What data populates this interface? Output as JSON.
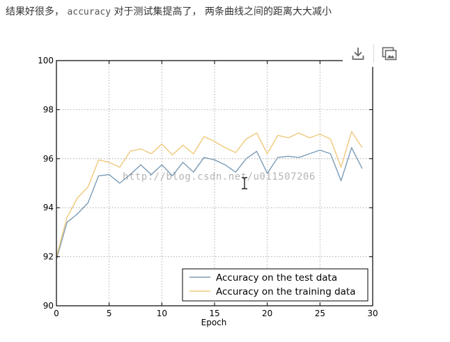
{
  "caption": {
    "prefix": "结果好很多，",
    "code": "accuracy",
    "suffix": "对于测试集提高了， 两条曲线之间的距离大大减小"
  },
  "toolbar": {
    "download_icon": "download-icon",
    "gallery_icon": "image-gallery-icon",
    "icon_color": "#666666"
  },
  "watermark": "http://blog.csdn.net/u011507206",
  "chart_data": {
    "type": "line",
    "title": "",
    "xlabel": "Epoch",
    "ylabel": "",
    "xlim": [
      0,
      30
    ],
    "ylim": [
      90,
      100
    ],
    "xticks": [
      0,
      5,
      10,
      15,
      20,
      25,
      30
    ],
    "yticks": [
      90,
      92,
      94,
      96,
      98,
      100
    ],
    "grid": true,
    "legend_position": "lower-right",
    "x": [
      0,
      1,
      2,
      3,
      4,
      5,
      6,
      7,
      8,
      9,
      10,
      11,
      12,
      13,
      14,
      15,
      16,
      17,
      18,
      19,
      20,
      21,
      22,
      23,
      24,
      25,
      26,
      27,
      28,
      29
    ],
    "series": [
      {
        "name": "Accuracy on the test data",
        "color": "#7a9bb6",
        "values": [
          91.9,
          93.4,
          93.75,
          94.2,
          95.3,
          95.35,
          95.0,
          95.35,
          95.75,
          95.35,
          95.75,
          95.3,
          95.85,
          95.45,
          96.05,
          95.95,
          95.75,
          95.45,
          96.0,
          96.3,
          95.4,
          96.05,
          96.1,
          96.05,
          96.2,
          96.35,
          96.2,
          95.1,
          96.45,
          95.6
        ]
      },
      {
        "name": "Accuracy on the training data",
        "color": "#f0c87a",
        "values": [
          92.0,
          93.6,
          94.4,
          94.85,
          95.95,
          95.85,
          95.65,
          96.3,
          96.4,
          96.2,
          96.6,
          96.15,
          96.55,
          96.2,
          96.9,
          96.7,
          96.45,
          96.25,
          96.8,
          97.05,
          96.2,
          96.95,
          96.85,
          97.05,
          96.85,
          97.0,
          96.8,
          95.65,
          97.1,
          96.45
        ]
      }
    ]
  }
}
